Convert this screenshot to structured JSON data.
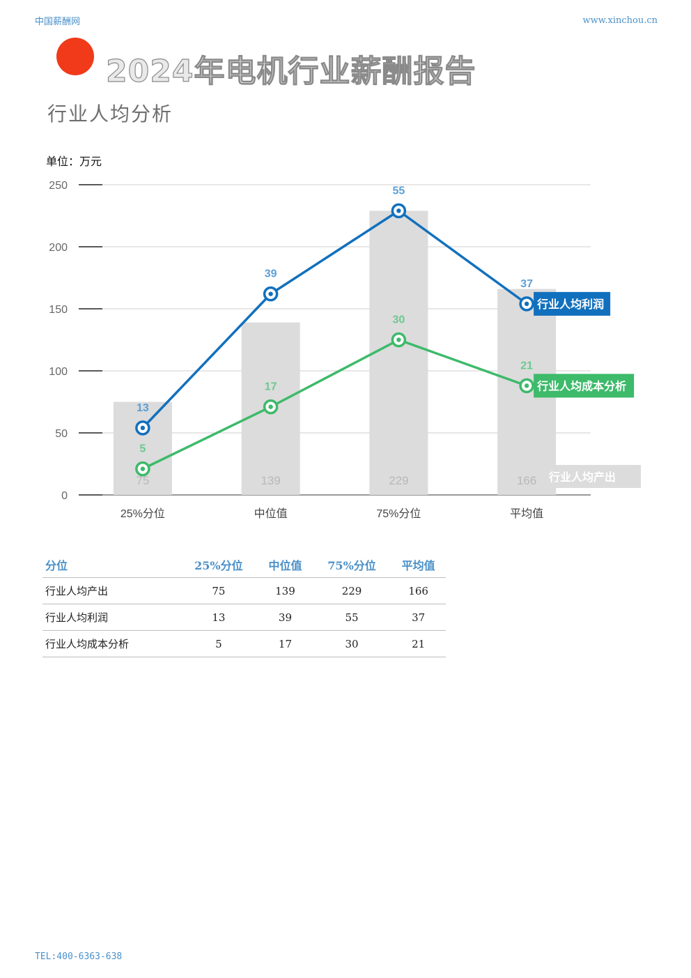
{
  "header": {
    "site_name": "中国薪酬网",
    "url": "www.xinchou.cn"
  },
  "page": {
    "title": "2024年电机行业薪酬报告",
    "subtitle": "行业人均分析",
    "unit_label": "单位：万元"
  },
  "chart_data": {
    "type": "bar+line",
    "categories": [
      "25%分位",
      "中位值",
      "75%分位",
      "平均值"
    ],
    "ylim": [
      0,
      250
    ],
    "yticks": [
      0,
      50,
      100,
      150,
      200,
      250
    ],
    "grid": true,
    "bar_series": {
      "name": "行业人均产出",
      "values": [
        75,
        139,
        229,
        166
      ],
      "color": "#dcdcdc",
      "label_color": "#b8b8b8"
    },
    "line_series": [
      {
        "name": "行业人均利润",
        "labels": [
          13,
          39,
          55,
          37
        ],
        "plotted_values": [
          54,
          162,
          229,
          154
        ],
        "color": "#1170bd",
        "label_color": "#5b9fd6"
      },
      {
        "name": "行业人均成本分析",
        "labels": [
          5,
          17,
          30,
          21
        ],
        "plotted_values": [
          21,
          71,
          125,
          88
        ],
        "color": "#3dba6a",
        "label_color": "#6cc88e"
      }
    ]
  },
  "table": {
    "headers": [
      "分位",
      "25%分位",
      "中位值",
      "75%分位",
      "平均值"
    ],
    "rows": [
      [
        "行业人均产出",
        "75",
        "139",
        "229",
        "166"
      ],
      [
        "行业人均利润",
        "13",
        "39",
        "55",
        "37"
      ],
      [
        "行业人均成本分析",
        "5",
        "17",
        "30",
        "21"
      ]
    ]
  },
  "footer": {
    "tel": "TEL:400-6363-638"
  }
}
